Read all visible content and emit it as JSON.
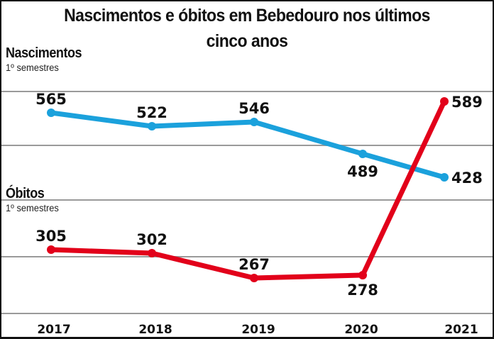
{
  "chart_data": {
    "type": "line",
    "title": "Nascimentos e óbitos em Bebedouro nos últimos cinco anos",
    "xlabel": "",
    "ylabel": "",
    "categories": [
      "2017",
      "2018",
      "2019",
      "2020",
      "2021"
    ],
    "series": [
      {
        "name": "Nascimentos",
        "subtitle": "1º semestres",
        "color": "#1ba1dc",
        "values": [
          565,
          522,
          546,
          489,
          428
        ],
        "labels": [
          "565",
          "522",
          "546",
          "489",
          "428"
        ]
      },
      {
        "name": "Óbitos",
        "subtitle": "1º semestres",
        "color": "#e2001a",
        "values": [
          305,
          302,
          267,
          278,
          589
        ],
        "labels": [
          "305",
          "302",
          "267",
          "278",
          "589"
        ]
      }
    ],
    "grid": true,
    "legend_position": "inline-left"
  },
  "title": {
    "line1": "Nascimentos e óbitos em Bebedouro nos últimos",
    "line2": "cinco anos"
  },
  "labels": {
    "births": "Nascimentos",
    "births_sub": "1º semestres",
    "deaths": "Óbitos",
    "deaths_sub": "1º semestres"
  },
  "colors": {
    "births": "#1ba1dc",
    "deaths": "#e2001a",
    "grid": "#9a9a9a",
    "frame": "#111111"
  }
}
